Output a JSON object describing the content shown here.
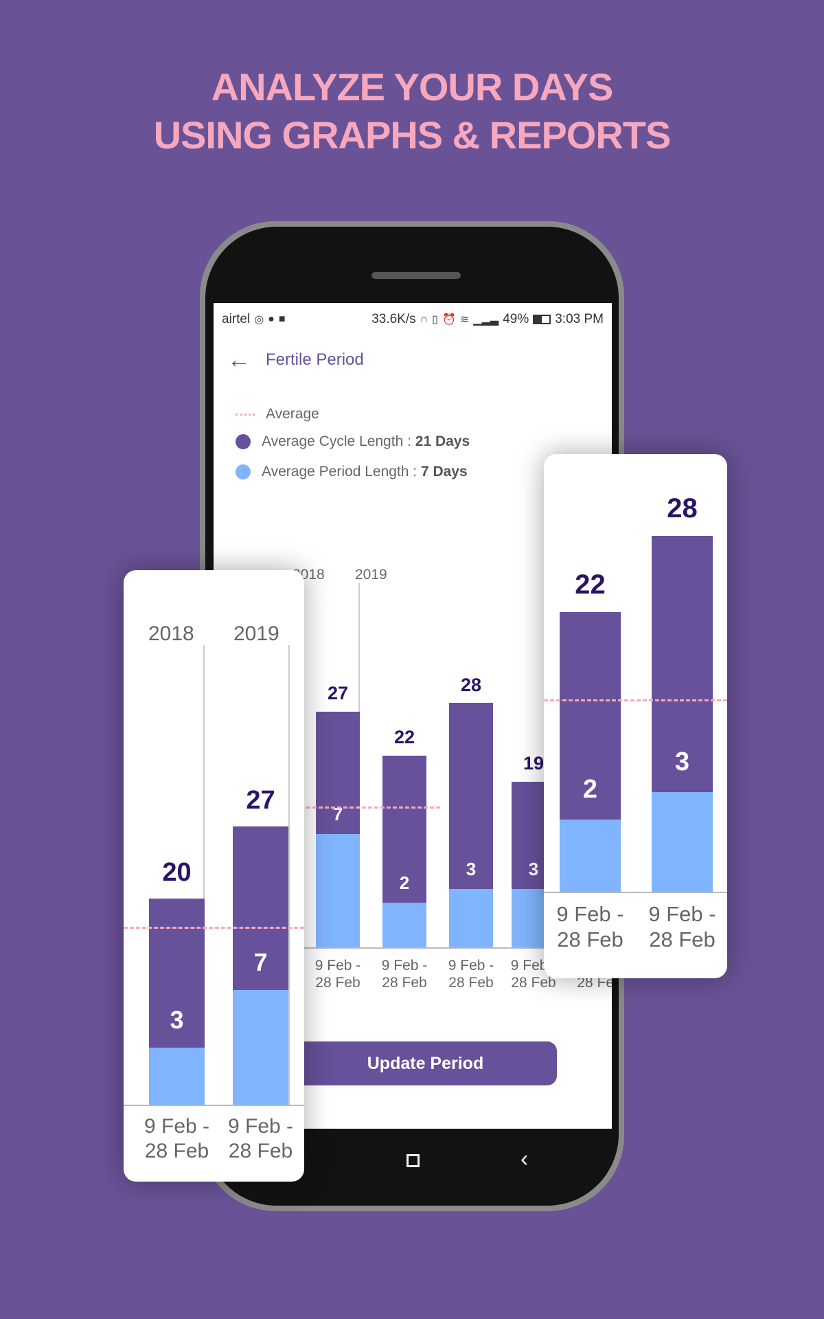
{
  "headline": {
    "line1": "ANALYZE YOUR DAYS",
    "line2": "USING GRAPHS & REPORTS"
  },
  "status_bar": {
    "carrier": "airtel",
    "speed": "33.6K/s",
    "battery": "49%",
    "battery_level": 0.49,
    "time": "3:03 PM",
    "icons": [
      "instagram-icon",
      "message-icon",
      "facebook-icon",
      "headphones-icon",
      "vibrate-icon",
      "alarm-icon",
      "wifi-icon",
      "signal-icon",
      "battery-icon"
    ]
  },
  "app_bar": {
    "title": "Fertile Period",
    "back_icon": "arrow-left-icon"
  },
  "legend": {
    "average": "Average",
    "cycle_label": "Average Cycle Length : ",
    "cycle_value": "21 Days",
    "period_label": "Average Period Length : ",
    "period_value": "7 Days"
  },
  "colors": {
    "cycle": "#66519a",
    "period": "#80b4fc",
    "average": "#f7a8be",
    "accent": "#66519a",
    "headline": "#f7a8be"
  },
  "update_button": "Update Period",
  "chart_data": [
    {
      "type": "bar",
      "stacked": true,
      "years": [
        "2018",
        "2019"
      ],
      "categories": [
        "9 Feb -\n28 Feb",
        "9 Feb -\n28 Feb",
        "9 Feb -\n28 Feb",
        "9 Feb -\n28 Feb",
        "9 Feb -\n28 Feb"
      ],
      "series": [
        {
          "values": [
            27,
            22,
            28,
            19,
            null
          ]
        },
        {
          "values": [
            7,
            2,
            3,
            3,
            null
          ]
        }
      ]
    },
    {
      "type": "bar",
      "stacked": true,
      "years": [
        "2018",
        "2019"
      ],
      "categories": [
        "9 Feb -\n28 Feb",
        "9 Feb -\n28 Feb"
      ],
      "series": [
        {
          "values": [
            20,
            27
          ]
        },
        {
          "values": [
            3,
            7
          ]
        }
      ]
    },
    {
      "type": "bar",
      "stacked": true,
      "categories": [
        "9 Feb -\n28 Feb",
        "9 Feb -\n28 Feb"
      ],
      "series": [
        {
          "values": [
            22,
            28
          ]
        },
        {
          "values": [
            2,
            3
          ]
        }
      ]
    }
  ]
}
